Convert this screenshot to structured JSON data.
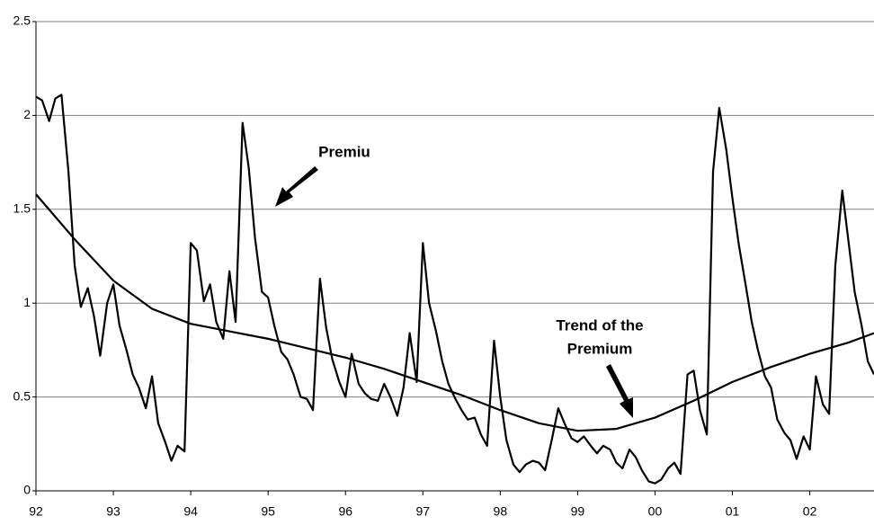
{
  "chart_data": {
    "type": "line",
    "annotations": [
      "Premiu",
      "Trend of the",
      "Premium"
    ],
    "xlim": [
      1992,
      2002.83
    ],
    "ylim": [
      0,
      2.5
    ],
    "xticks": [
      {
        "value": 1992,
        "label": "92"
      },
      {
        "value": 1993,
        "label": "93"
      },
      {
        "value": 1994,
        "label": "94"
      },
      {
        "value": 1995,
        "label": "95"
      },
      {
        "value": 1996,
        "label": "96"
      },
      {
        "value": 1997,
        "label": "97"
      },
      {
        "value": 1998,
        "label": "98"
      },
      {
        "value": 1999,
        "label": "99"
      },
      {
        "value": 2000,
        "label": "00"
      },
      {
        "value": 2001,
        "label": "01"
      },
      {
        "value": 2002,
        "label": "02"
      }
    ],
    "yticks": [
      0,
      0.5,
      1,
      1.5,
      2,
      2.5
    ],
    "grid": true,
    "series": [
      {
        "color": "#000000",
        "x": [
          1992,
          1992.08,
          1992.17,
          1992.25,
          1992.33,
          1992.42,
          1992.5,
          1992.58,
          1992.67,
          1992.75,
          1992.83,
          1992.92,
          1993,
          1993.08,
          1993.17,
          1993.25,
          1993.33,
          1993.42,
          1993.5,
          1993.58,
          1993.67,
          1993.75,
          1993.83,
          1993.92,
          1994,
          1994.08,
          1994.17,
          1994.25,
          1994.33,
          1994.42,
          1994.5,
          1994.58,
          1994.67,
          1994.75,
          1994.83,
          1994.92,
          1995,
          1995.08,
          1995.17,
          1995.25,
          1995.33,
          1995.42,
          1995.5,
          1995.58,
          1995.67,
          1995.75,
          1995.83,
          1995.92,
          1996,
          1996.08,
          1996.17,
          1996.25,
          1996.33,
          1996.42,
          1996.5,
          1996.58,
          1996.67,
          1996.75,
          1996.83,
          1996.92,
          1997,
          1997.08,
          1997.17,
          1997.25,
          1997.33,
          1997.42,
          1997.5,
          1997.58,
          1997.67,
          1997.75,
          1997.83,
          1997.92,
          1998,
          1998.08,
          1998.17,
          1998.25,
          1998.33,
          1998.42,
          1998.5,
          1998.58,
          1998.67,
          1998.75,
          1998.83,
          1998.92,
          1999,
          1999.08,
          1999.17,
          1999.25,
          1999.33,
          1999.42,
          1999.5,
          1999.58,
          1999.67,
          1999.75,
          1999.83,
          1999.92,
          2000,
          2000.08,
          2000.17,
          2000.25,
          2000.33,
          2000.42,
          2000.5,
          2000.58,
          2000.67,
          2000.75,
          2000.83,
          2000.92,
          2001,
          2001.08,
          2001.17,
          2001.25,
          2001.33,
          2001.42,
          2001.5,
          2001.58,
          2001.67,
          2001.75,
          2001.83,
          2001.92,
          2002,
          2002.08,
          2002.17,
          2002.25,
          2002.33,
          2002.42,
          2002.5,
          2002.58,
          2002.67,
          2002.75,
          2002.83
        ],
        "values": [
          2.1,
          2.08,
          1.97,
          2.09,
          2.11,
          1.7,
          1.2,
          0.98,
          1.08,
          0.93,
          0.72,
          1.0,
          1.1,
          0.88,
          0.75,
          0.62,
          0.55,
          0.44,
          0.61,
          0.36,
          0.26,
          0.16,
          0.24,
          0.21,
          1.32,
          1.28,
          1.01,
          1.1,
          0.9,
          0.81,
          1.17,
          0.9,
          1.96,
          1.72,
          1.35,
          1.06,
          1.03,
          0.88,
          0.74,
          0.7,
          0.62,
          0.5,
          0.49,
          0.43,
          1.13,
          0.87,
          0.7,
          0.58,
          0.5,
          0.73,
          0.57,
          0.52,
          0.49,
          0.48,
          0.57,
          0.5,
          0.4,
          0.55,
          0.84,
          0.58,
          1.32,
          1.0,
          0.85,
          0.69,
          0.57,
          0.49,
          0.43,
          0.38,
          0.39,
          0.3,
          0.24,
          0.8,
          0.5,
          0.27,
          0.14,
          0.1,
          0.14,
          0.16,
          0.15,
          0.11,
          0.28,
          0.44,
          0.36,
          0.28,
          0.26,
          0.29,
          0.24,
          0.2,
          0.24,
          0.22,
          0.15,
          0.12,
          0.22,
          0.18,
          0.11,
          0.05,
          0.04,
          0.06,
          0.12,
          0.15,
          0.09,
          0.62,
          0.64,
          0.43,
          0.3,
          1.7,
          2.04,
          1.82,
          1.56,
          1.32,
          1.1,
          0.9,
          0.75,
          0.61,
          0.55,
          0.38,
          0.31,
          0.27,
          0.17,
          0.29,
          0.22,
          0.61,
          0.46,
          0.41,
          1.2,
          1.6,
          1.33,
          1.06,
          0.88,
          0.69,
          0.62
        ]
      },
      {
        "color": "#000000",
        "x": [
          1992,
          1992.5,
          1993,
          1993.5,
          1994,
          1994.5,
          1995,
          1995.5,
          1996,
          1996.5,
          1997,
          1997.5,
          1998,
          1998.5,
          1999,
          1999.5,
          2000,
          2000.5,
          2001,
          2001.5,
          2002,
          2002.5,
          2002.83
        ],
        "values": [
          1.58,
          1.34,
          1.12,
          0.97,
          0.89,
          0.85,
          0.81,
          0.76,
          0.71,
          0.65,
          0.58,
          0.51,
          0.43,
          0.36,
          0.32,
          0.33,
          0.39,
          0.48,
          0.58,
          0.66,
          0.73,
          0.79,
          0.84
        ]
      }
    ]
  }
}
